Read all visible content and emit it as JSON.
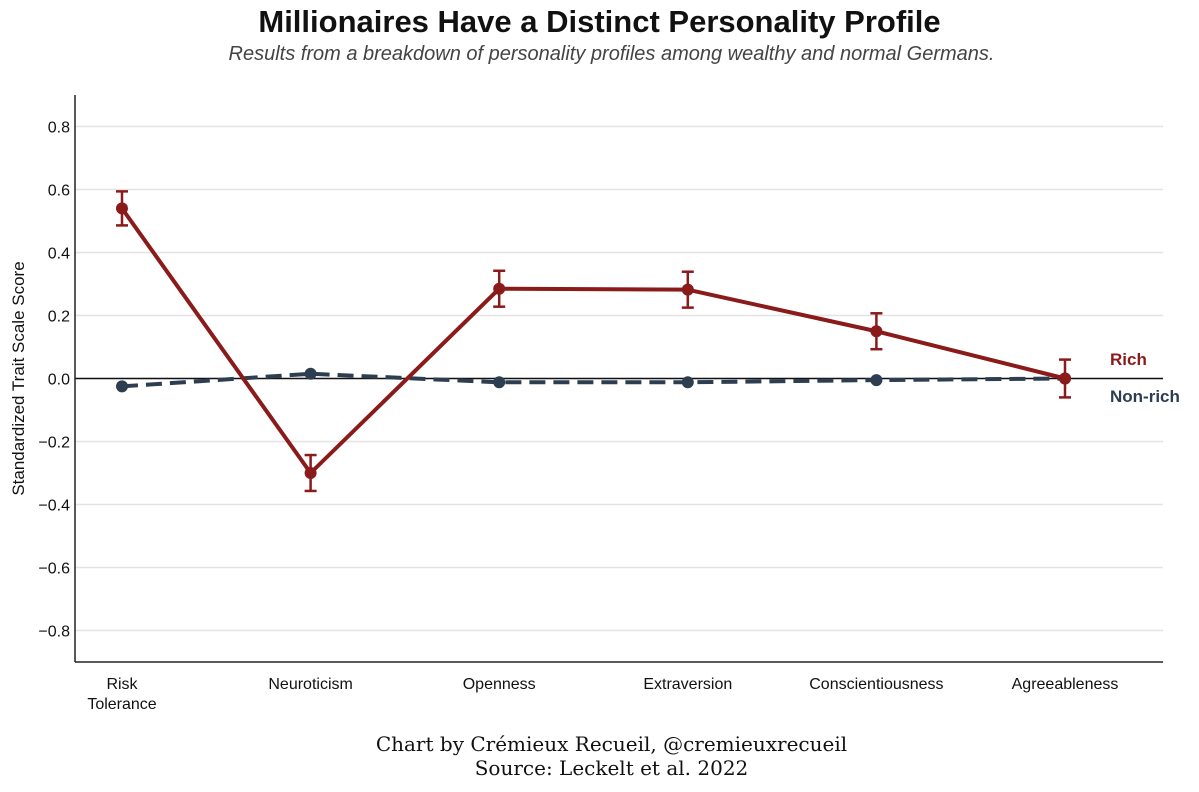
{
  "chart_data": {
    "type": "line",
    "title": "Millionaires Have a Distinct Personality Profile",
    "subtitle": "Results from a breakdown of personality profiles among wealthy and normal Germans.",
    "ylabel": "Standardized Trait Scale Score",
    "xlabel": "",
    "ylim": [
      -0.9,
      0.9
    ],
    "yticks": [
      -0.8,
      -0.6,
      -0.4,
      -0.2,
      0.0,
      0.2,
      0.4,
      0.6,
      0.8
    ],
    "ytick_labels": [
      "−0.8",
      "−0.6",
      "−0.4",
      "−0.2",
      "0.0",
      "0.2",
      "0.4",
      "0.6",
      "0.8"
    ],
    "categories": [
      [
        "Risk",
        "Tolerance"
      ],
      [
        "Neuroticism"
      ],
      [
        "Openness"
      ],
      [
        "Extraversion"
      ],
      [
        "Conscientiousness"
      ],
      [
        "Agreeableness"
      ]
    ],
    "series": [
      {
        "name": "Rich",
        "color": "#8b1a1a",
        "style": "solid",
        "values": [
          0.54,
          -0.3,
          0.285,
          0.282,
          0.15,
          0.0
        ],
        "error": [
          0.054,
          0.057,
          0.057,
          0.057,
          0.057,
          0.06
        ]
      },
      {
        "name": "Non-rich",
        "color": "#2c3e50",
        "style": "dashed",
        "values": [
          -0.025,
          0.015,
          -0.012,
          -0.012,
          -0.005,
          0.0
        ]
      }
    ],
    "legend_placement": "right-inline",
    "grid": true
  },
  "footer": {
    "credit_line": "Chart by Crémieux Recueil, @cremieuxrecueil",
    "source_line": "Source: Leckelt et al. 2022"
  }
}
